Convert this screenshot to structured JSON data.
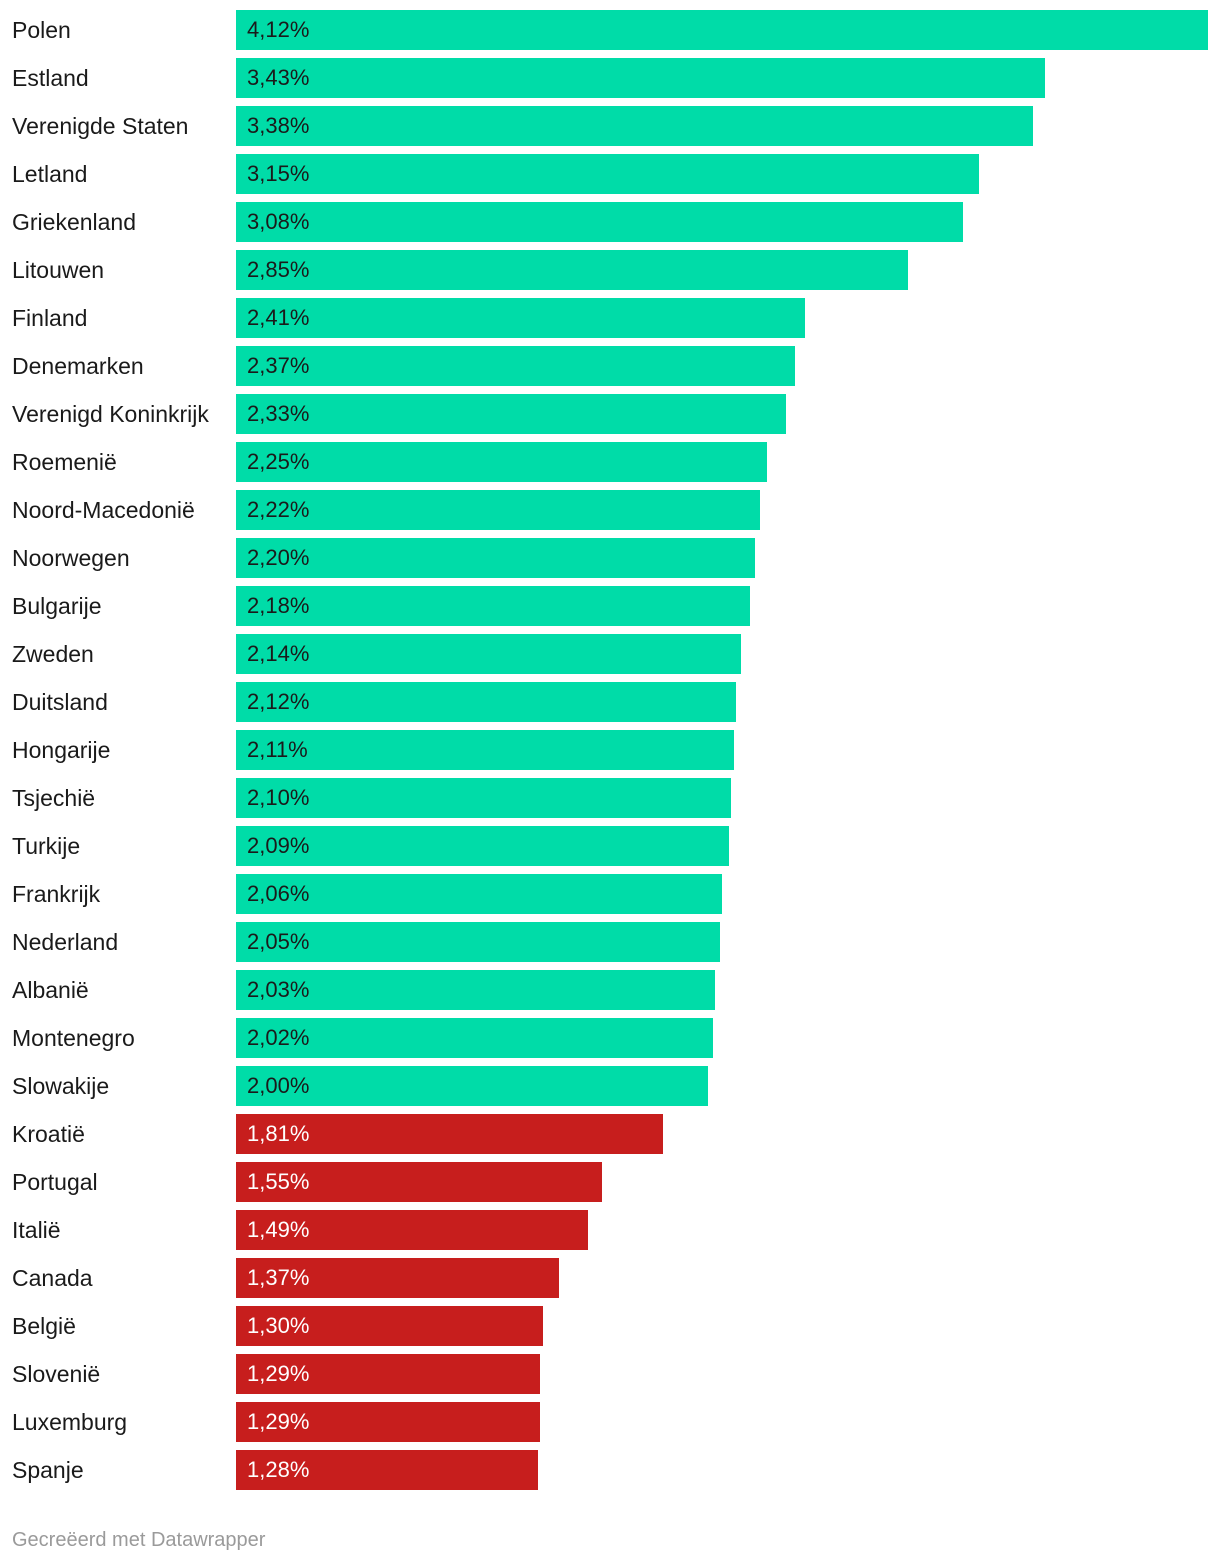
{
  "chart_data": {
    "type": "bar",
    "orientation": "horizontal",
    "categories": [
      "Polen",
      "Estland",
      "Verenigde Staten",
      "Letland",
      "Griekenland",
      "Litouwen",
      "Finland",
      "Denemarken",
      "Verenigd Koninkrijk",
      "Roemenië",
      "Noord-Macedonië",
      "Noorwegen",
      "Bulgarije",
      "Zweden",
      "Duitsland",
      "Hongarije",
      "Tsjechië",
      "Turkije",
      "Frankrijk",
      "Nederland",
      "Albanië",
      "Montenegro",
      "Slowakije",
      "Kroatië",
      "Portugal",
      "Italië",
      "Canada",
      "België",
      "Slovenië",
      "Luxemburg",
      "Spanje"
    ],
    "values": [
      4.12,
      3.43,
      3.38,
      3.15,
      3.08,
      2.85,
      2.41,
      2.37,
      2.33,
      2.25,
      2.22,
      2.2,
      2.18,
      2.14,
      2.12,
      2.11,
      2.1,
      2.09,
      2.06,
      2.05,
      2.03,
      2.02,
      2.0,
      1.81,
      1.55,
      1.49,
      1.37,
      1.3,
      1.29,
      1.29,
      1.28
    ],
    "value_labels": [
      "4,12%",
      "3,43%",
      "3,38%",
      "3,15%",
      "3,08%",
      "2,85%",
      "2,41%",
      "2,37%",
      "2,33%",
      "2,25%",
      "2,22%",
      "2,20%",
      "2,18%",
      "2,14%",
      "2,12%",
      "2,11%",
      "2,10%",
      "2,09%",
      "2,06%",
      "2,05%",
      "2,03%",
      "2,02%",
      "2,00%",
      "1,81%",
      "1,55%",
      "1,49%",
      "1,37%",
      "1,30%",
      "1,29%",
      "1,29%",
      "1,28%"
    ],
    "threshold": 2.0,
    "colors": {
      "above_threshold": "#00dca8",
      "below_threshold": "#c71e1d",
      "label_on_above": "#1a1a1a",
      "label_on_below": "#ffffff"
    },
    "xlim": [
      0,
      4.12
    ],
    "grid": false,
    "legend": "none",
    "title": "",
    "xlabel": "",
    "ylabel": ""
  },
  "footer": {
    "credit": "Gecreëerd met Datawrapper"
  }
}
